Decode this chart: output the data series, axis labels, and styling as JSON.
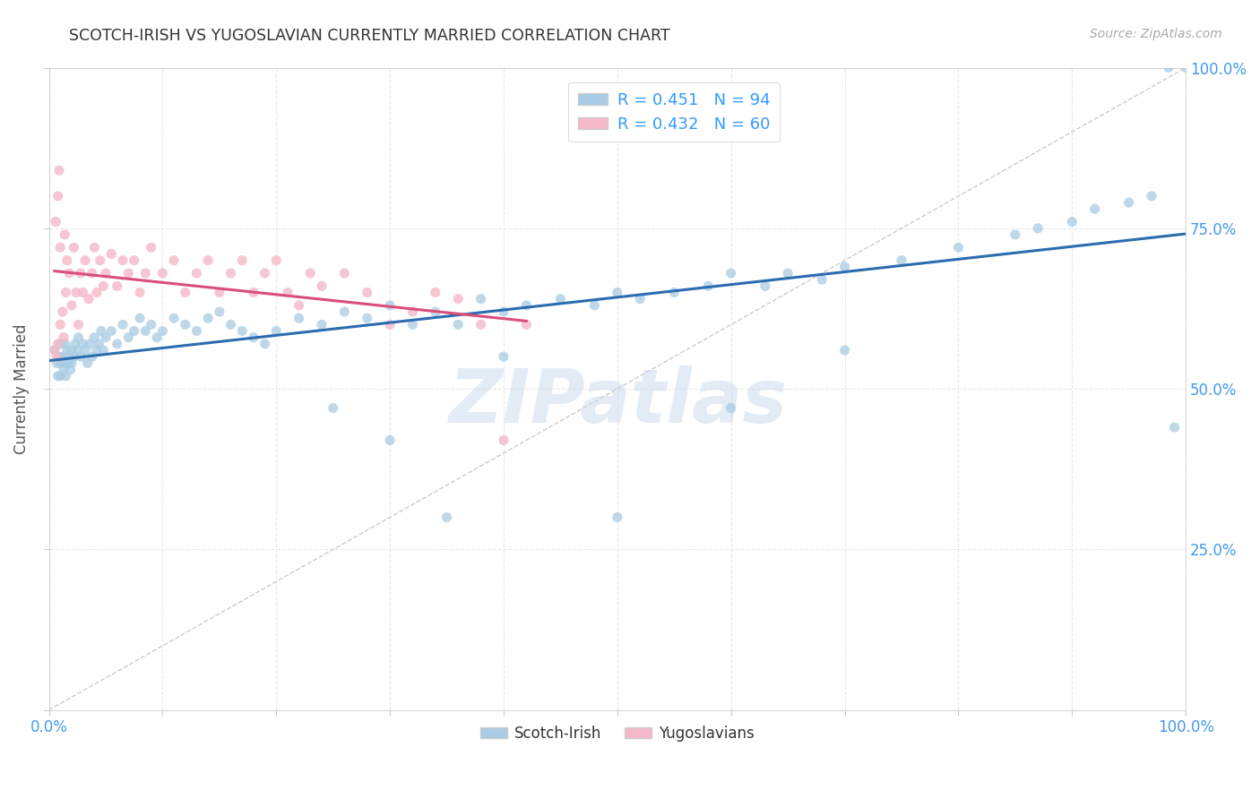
{
  "title": "SCOTCH-IRISH VS YUGOSLAVIAN CURRENTLY MARRIED CORRELATION CHART",
  "source": "Source: ZipAtlas.com",
  "ylabel": "Currently Married",
  "blue_color": "#a8cce4",
  "pink_color": "#f4b8c8",
  "blue_line_color": "#2b6cb0",
  "pink_line_color": "#d94f7a",
  "diagonal_color": "#cccccc",
  "R_blue": 0.451,
  "N_blue": 94,
  "R_pink": 0.432,
  "N_pink": 60,
  "legend_R_color": "#3399ff",
  "tick_color": "#4499ee",
  "grid_color": "#e8e8e8",
  "watermark_color": "#c8d8ec",
  "blue_x": [
    0.005,
    0.007,
    0.008,
    0.009,
    0.01,
    0.01,
    0.01,
    0.012,
    0.013,
    0.014,
    0.015,
    0.015,
    0.016,
    0.017,
    0.018,
    0.019,
    0.02,
    0.02,
    0.022,
    0.023,
    0.025,
    0.026,
    0.028,
    0.03,
    0.032,
    0.034,
    0.036,
    0.038,
    0.04,
    0.042,
    0.044,
    0.046,
    0.048,
    0.05,
    0.055,
    0.06,
    0.065,
    0.07,
    0.075,
    0.08,
    0.085,
    0.09,
    0.095,
    0.1,
    0.11,
    0.12,
    0.13,
    0.14,
    0.15,
    0.16,
    0.17,
    0.18,
    0.19,
    0.2,
    0.22,
    0.24,
    0.26,
    0.28,
    0.3,
    0.32,
    0.34,
    0.36,
    0.38,
    0.4,
    0.42,
    0.45,
    0.48,
    0.5,
    0.52,
    0.55,
    0.58,
    0.6,
    0.63,
    0.65,
    0.68,
    0.7,
    0.75,
    0.8,
    0.85,
    0.87,
    0.9,
    0.92,
    0.95,
    0.97,
    0.985,
    0.99,
    1.0,
    0.35,
    0.3,
    0.25,
    0.4,
    0.5,
    0.6,
    0.7
  ],
  "blue_y": [
    0.56,
    0.54,
    0.52,
    0.55,
    0.57,
    0.54,
    0.52,
    0.55,
    0.53,
    0.57,
    0.54,
    0.52,
    0.56,
    0.54,
    0.55,
    0.53,
    0.56,
    0.54,
    0.55,
    0.57,
    0.56,
    0.58,
    0.55,
    0.57,
    0.56,
    0.54,
    0.57,
    0.55,
    0.58,
    0.56,
    0.57,
    0.59,
    0.56,
    0.58,
    0.59,
    0.57,
    0.6,
    0.58,
    0.59,
    0.61,
    0.59,
    0.6,
    0.58,
    0.59,
    0.61,
    0.6,
    0.59,
    0.61,
    0.62,
    0.6,
    0.59,
    0.58,
    0.57,
    0.59,
    0.61,
    0.6,
    0.62,
    0.61,
    0.63,
    0.6,
    0.62,
    0.6,
    0.64,
    0.62,
    0.63,
    0.64,
    0.63,
    0.65,
    0.64,
    0.65,
    0.66,
    0.68,
    0.66,
    0.68,
    0.67,
    0.69,
    0.7,
    0.72,
    0.74,
    0.75,
    0.76,
    0.78,
    0.79,
    0.8,
    1.0,
    0.44,
    1.0,
    0.3,
    0.42,
    0.47,
    0.55,
    0.3,
    0.47,
    0.56
  ],
  "pink_x": [
    0.005,
    0.007,
    0.008,
    0.009,
    0.01,
    0.01,
    0.012,
    0.013,
    0.015,
    0.016,
    0.018,
    0.02,
    0.022,
    0.024,
    0.026,
    0.028,
    0.03,
    0.032,
    0.035,
    0.038,
    0.04,
    0.042,
    0.045,
    0.048,
    0.05,
    0.055,
    0.06,
    0.065,
    0.07,
    0.075,
    0.08,
    0.085,
    0.09,
    0.1,
    0.11,
    0.12,
    0.13,
    0.14,
    0.15,
    0.16,
    0.17,
    0.18,
    0.19,
    0.2,
    0.21,
    0.22,
    0.23,
    0.24,
    0.26,
    0.28,
    0.3,
    0.32,
    0.34,
    0.36,
    0.38,
    0.4,
    0.42,
    0.006,
    0.008,
    0.014
  ],
  "pink_y": [
    0.56,
    0.55,
    0.57,
    0.84,
    0.6,
    0.72,
    0.62,
    0.58,
    0.65,
    0.7,
    0.68,
    0.63,
    0.72,
    0.65,
    0.6,
    0.68,
    0.65,
    0.7,
    0.64,
    0.68,
    0.72,
    0.65,
    0.7,
    0.66,
    0.68,
    0.71,
    0.66,
    0.7,
    0.68,
    0.7,
    0.65,
    0.68,
    0.72,
    0.68,
    0.7,
    0.65,
    0.68,
    0.7,
    0.65,
    0.68,
    0.7,
    0.65,
    0.68,
    0.7,
    0.65,
    0.63,
    0.68,
    0.66,
    0.68,
    0.65,
    0.6,
    0.62,
    0.65,
    0.64,
    0.6,
    0.42,
    0.6,
    0.76,
    0.8,
    0.74
  ]
}
